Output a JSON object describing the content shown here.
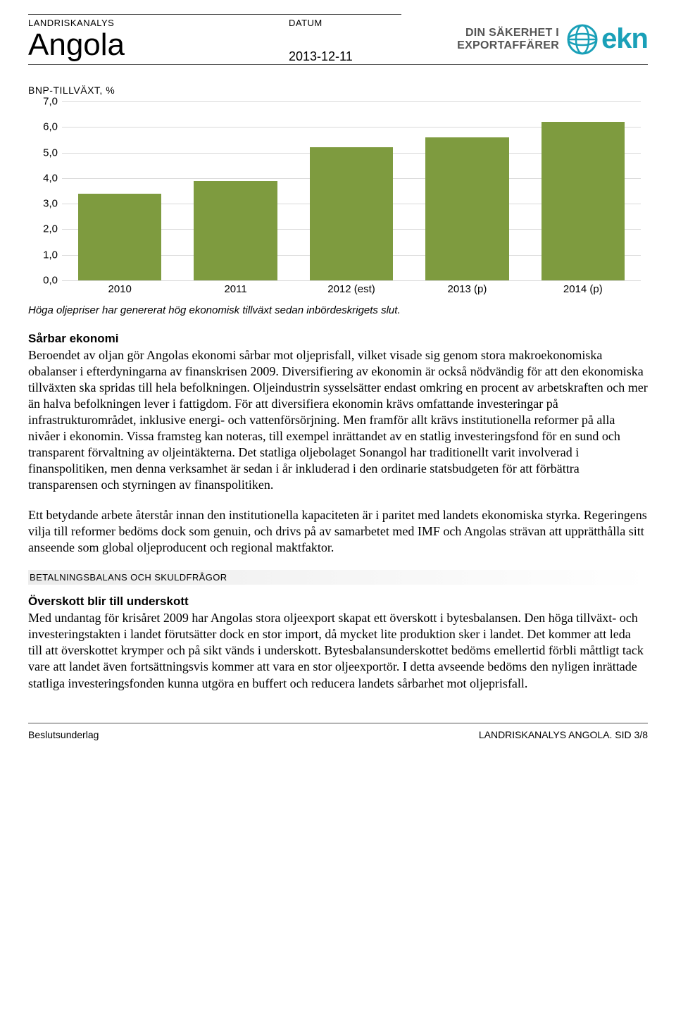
{
  "header": {
    "landriskanalys_label": "LANDRISKANALYS",
    "country": "Angola",
    "datum_label": "DATUM",
    "date": "2013-12-11",
    "tagline_line1": "DIN SÄKERHET I",
    "tagline_line2": "EXPORTAFFÄRER",
    "logo_text": "ekn",
    "logo_color": "#1aa0b8"
  },
  "chart": {
    "type": "bar",
    "title": "BNP-TILLVÄXT, %",
    "categories": [
      "2010",
      "2011",
      "2012 (est)",
      "2013 (p)",
      "2014 (p)"
    ],
    "values": [
      3.4,
      3.9,
      5.2,
      5.6,
      6.2
    ],
    "bar_color": "#7e9b3f",
    "ylim": [
      0,
      7
    ],
    "ytick_step": 1,
    "ytick_labels": [
      "0,0",
      "1,0",
      "2,0",
      "3,0",
      "4,0",
      "5,0",
      "6,0",
      "7,0"
    ],
    "grid_color": "#d9d9d9",
    "background_color": "#ffffff",
    "caption": "Höga oljepriser har genererat hög ekonomisk tillväxt sedan inbördeskrigets slut."
  },
  "body": {
    "sarbarekonomi_heading": "Sårbar ekonomi",
    "sarbarekonomi_p1": "Beroendet av oljan gör Angolas ekonomi sårbar mot oljeprisfall, vilket visade sig genom stora makroekonomiska obalanser i efterdyningarna av finanskrisen 2009. Diversifiering av ekonomin är också nödvändig för att den ekonomiska tillväxten ska spridas till hela befolkningen. Oljeindustrin sysselsätter endast omkring en procent av arbetskraften och mer än halva befolkningen lever i fattigdom. För att diversifiera ekonomin krävs omfattande investeringar på infrastrukturområdet, inklusive energi- och vattenförsörjning. Men framför allt krävs institutionella reformer på alla nivåer i ekonomin. Vissa framsteg kan noteras, till exempel inrättandet av en statlig investeringsfond för en sund och transparent förvaltning av oljeintäkterna. Det statliga oljebolaget Sonangol har traditionellt varit involverad i finanspolitiken, men denna verksamhet är sedan i år inkluderad i den ordinarie statsbudgeten för att förbättra transparensen och styrningen av finanspolitiken.",
    "sarbarekonomi_p2": "Ett betydande arbete återstår innan den institutionella kapaciteten är i paritet med landets ekonomiska styrka. Regeringens vilja till reformer bedöms dock som genuin, och drivs på av samarbetet med IMF och Angolas strävan att upprätthålla sitt anseende som global oljeproducent och regional maktfaktor.",
    "band_label": "BETALNINGSBALANS OCH SKULDFRÅGOR",
    "overskott_heading": "Överskott blir till underskott",
    "overskott_p1": "Med undantag för krisåret 2009 har Angolas stora oljeexport skapat ett överskott i bytesbalansen. Den höga tillväxt- och investeringstakten i landet förutsätter dock en stor import, då mycket lite produktion sker i landet. Det kommer att leda till att överskottet krymper och på sikt vänds i underskott. Bytesbalansunderskottet bedöms emellertid förbli måttligt tack vare att landet även fortsättningsvis kommer att vara en stor oljeexportör. I detta avseende bedöms den nyligen inrättade statliga investeringsfonden kunna utgöra en buffert och reducera landets sårbarhet mot oljeprisfall."
  },
  "footer": {
    "left": "Beslutsunderlag",
    "right": "LANDRISKANALYS ANGOLA. SID 3/8"
  }
}
